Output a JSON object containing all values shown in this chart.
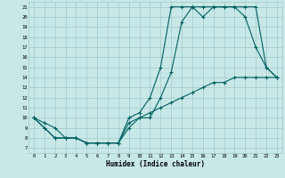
{
  "title": "",
  "xlabel": "Humidex (Indice chaleur)",
  "bg_color": "#c8e8e8",
  "grid_color": "#a0c8c8",
  "line_color": "#006060",
  "xlim": [
    -0.5,
    23.5
  ],
  "ylim": [
    6.5,
    21.5
  ],
  "xticks": [
    0,
    1,
    2,
    3,
    4,
    5,
    6,
    7,
    8,
    9,
    10,
    11,
    12,
    13,
    14,
    15,
    16,
    17,
    18,
    19,
    20,
    21,
    22,
    23
  ],
  "yticks": [
    7,
    8,
    9,
    10,
    11,
    12,
    13,
    14,
    15,
    16,
    17,
    18,
    19,
    20,
    21
  ],
  "line1_x": [
    0,
    1,
    2,
    3,
    4,
    5,
    6,
    7,
    8,
    9,
    10,
    11,
    12,
    13,
    14,
    15,
    16,
    17,
    18,
    19,
    20,
    21,
    22,
    23
  ],
  "line1_y": [
    10,
    9,
    8,
    8,
    8,
    7.5,
    7.5,
    7.5,
    7.5,
    9.5,
    10,
    10,
    12,
    14.5,
    19.5,
    21,
    20,
    21,
    21,
    21,
    20,
    17,
    15,
    14
  ],
  "line2_x": [
    0,
    1,
    2,
    3,
    4,
    5,
    6,
    7,
    8,
    9,
    10,
    11,
    12,
    13,
    14,
    15,
    16,
    17,
    18,
    19,
    20,
    21,
    22,
    23
  ],
  "line2_y": [
    10,
    9.5,
    9,
    8,
    8,
    7.5,
    7.5,
    7.5,
    7.5,
    10,
    10.5,
    12,
    15,
    21,
    21,
    21,
    21,
    21,
    21,
    21,
    21,
    21,
    15,
    14
  ],
  "line3_x": [
    0,
    1,
    2,
    3,
    4,
    5,
    6,
    7,
    8,
    9,
    10,
    11,
    12,
    13,
    14,
    15,
    16,
    17,
    18,
    19,
    20,
    21,
    22,
    23
  ],
  "line3_y": [
    10,
    9,
    8,
    8,
    8,
    7.5,
    7.5,
    7.5,
    7.5,
    9,
    10,
    10.5,
    11,
    11.5,
    12,
    12.5,
    13,
    13.5,
    13.5,
    14,
    14,
    14,
    14,
    14
  ]
}
